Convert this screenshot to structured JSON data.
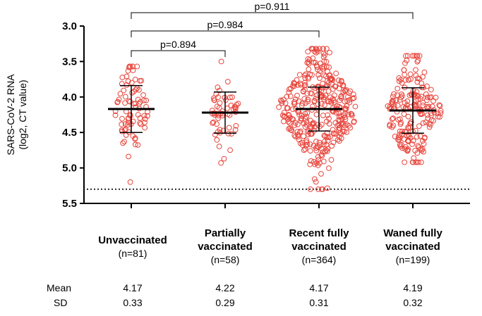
{
  "chart_data": {
    "type": "scatter",
    "ylabel": "SARS-CoV-2 RNA (log2, CT value)",
    "ylabel_lines": [
      "SARS-CoV-2 RNA",
      "(log2, CT value)"
    ],
    "ylim": [
      3.0,
      5.5
    ],
    "y_inverted": true,
    "yticks": [
      "3.0",
      "3.5",
      "4.0",
      "4.5",
      "5.0",
      "5.5"
    ],
    "grid": false,
    "point_color": "#e8453c",
    "dotted_reference_y": 5.3,
    "categories": [
      {
        "name_lines": [
          "Unvaccinated"
        ],
        "n_label": "(n=81)",
        "n": 81,
        "mean": 4.17,
        "sd": 0.33,
        "min": 3.57,
        "max": 5.2,
        "spread": 1.0
      },
      {
        "name_lines": [
          "Partially",
          "vaccinated"
        ],
        "n_label": "(n=58)",
        "n": 58,
        "mean": 4.22,
        "sd": 0.29,
        "min": 3.5,
        "max": 4.93,
        "spread": 0.85
      },
      {
        "name_lines": [
          "Recent fully",
          "vaccinated"
        ],
        "n_label": "(n=364)",
        "n": 364,
        "mean": 4.17,
        "sd": 0.31,
        "min": 3.32,
        "max": 5.3,
        "spread": 1.25
      },
      {
        "name_lines": [
          "Waned fully",
          "vaccinated"
        ],
        "n_label": "(n=199)",
        "n": 199,
        "mean": 4.19,
        "sd": 0.32,
        "min": 3.42,
        "max": 4.92,
        "spread": 1.15
      }
    ],
    "comparisons": [
      {
        "from": 0,
        "to": 1,
        "label": "p=0.894"
      },
      {
        "from": 0,
        "to": 2,
        "label": "p=0.984"
      },
      {
        "from": 0,
        "to": 3,
        "label": "p=0.911"
      }
    ],
    "stats_rows": [
      {
        "label": "Mean",
        "values": [
          "4.17",
          "4.22",
          "4.17",
          "4.19"
        ]
      },
      {
        "label": "SD",
        "values": [
          "0.33",
          "0.29",
          "0.31",
          "0.32"
        ]
      }
    ]
  }
}
